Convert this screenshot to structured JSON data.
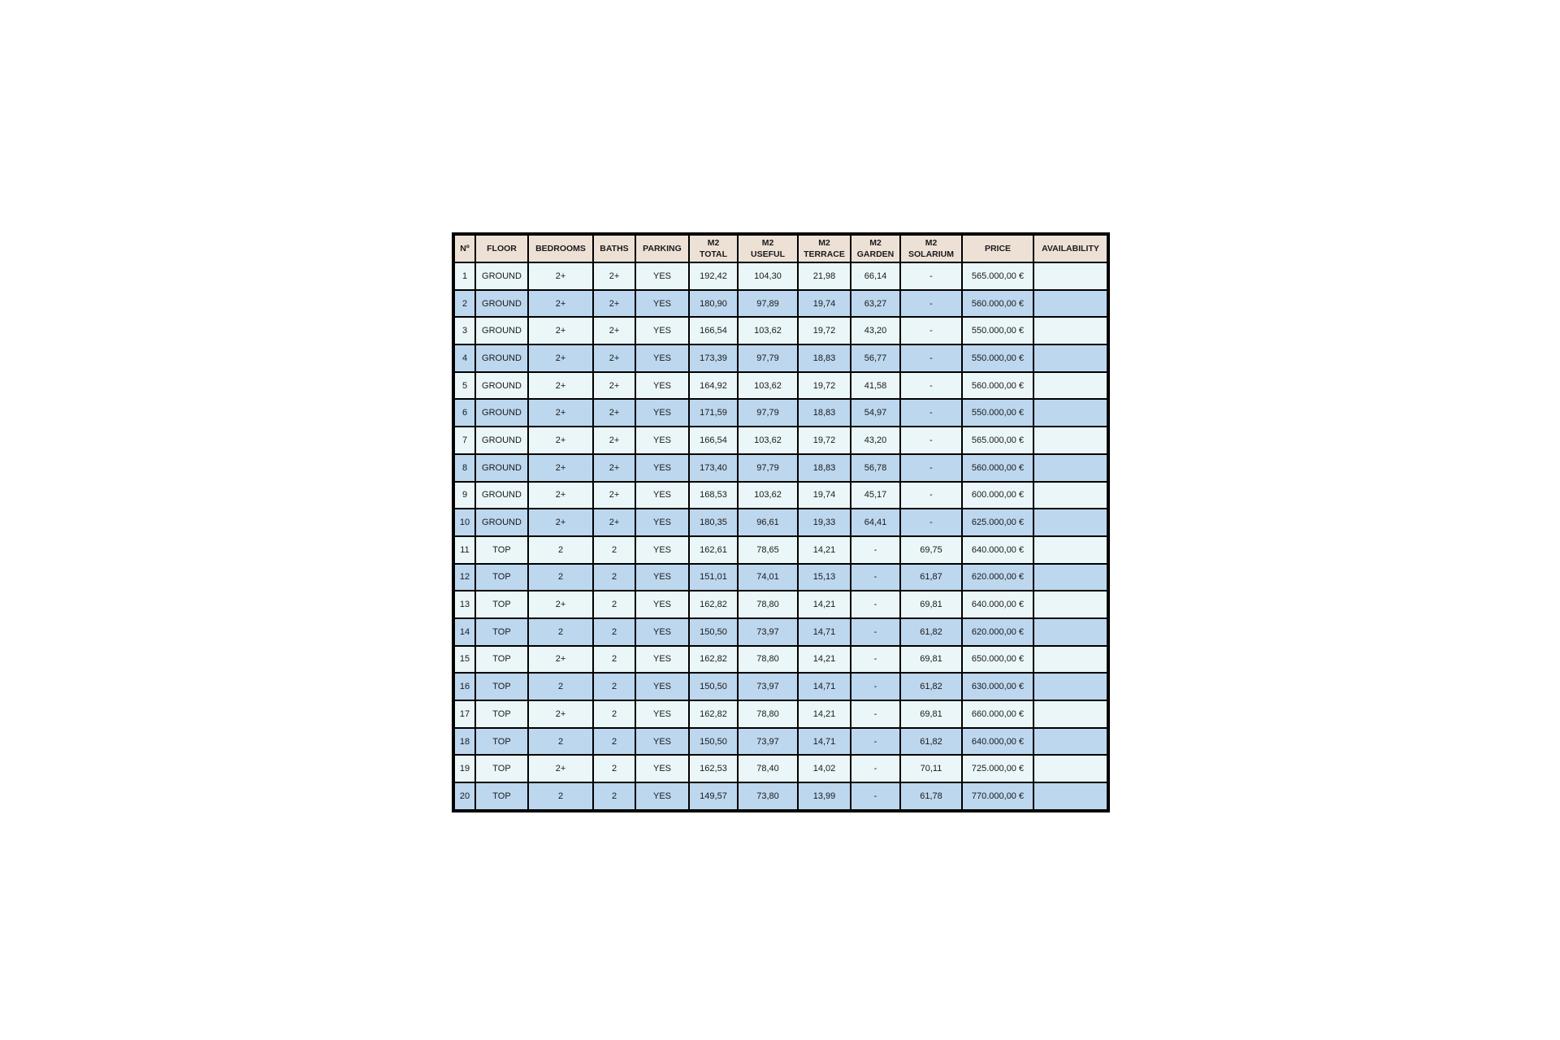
{
  "colors": {
    "header_bg": "#ede1d6",
    "row_light": "#ebf6f8",
    "row_blue": "#bdd7ee",
    "border": "#000000"
  },
  "table": {
    "headers": [
      [
        "Nº"
      ],
      [
        "FLOOR"
      ],
      [
        "BEDROOMS"
      ],
      [
        "BATHS"
      ],
      [
        "PARKING"
      ],
      [
        "M2",
        "TOTAL"
      ],
      [
        "M2",
        "USEFUL"
      ],
      [
        "M2",
        "TERRACE"
      ],
      [
        "M2",
        "GARDEN"
      ],
      [
        "M2",
        "SOLARIUM"
      ],
      [
        "PRICE"
      ],
      [
        "AVAILABILITY"
      ]
    ],
    "rows": [
      [
        "1",
        "GROUND",
        "2+",
        "2+",
        "YES",
        "192,42",
        "104,30",
        "21,98",
        "66,14",
        "-",
        "565.000,00 €",
        ""
      ],
      [
        "2",
        "GROUND",
        "2+",
        "2+",
        "YES",
        "180,90",
        "97,89",
        "19,74",
        "63,27",
        "-",
        "560.000,00 €",
        ""
      ],
      [
        "3",
        "GROUND",
        "2+",
        "2+",
        "YES",
        "166,54",
        "103,62",
        "19,72",
        "43,20",
        "-",
        "550.000,00 €",
        ""
      ],
      [
        "4",
        "GROUND",
        "2+",
        "2+",
        "YES",
        "173,39",
        "97,79",
        "18,83",
        "56,77",
        "-",
        "550.000,00 €",
        ""
      ],
      [
        "5",
        "GROUND",
        "2+",
        "2+",
        "YES",
        "164,92",
        "103,62",
        "19,72",
        "41,58",
        "-",
        "560.000,00 €",
        ""
      ],
      [
        "6",
        "GROUND",
        "2+",
        "2+",
        "YES",
        "171,59",
        "97,79",
        "18,83",
        "54,97",
        "-",
        "550.000,00 €",
        ""
      ],
      [
        "7",
        "GROUND",
        "2+",
        "2+",
        "YES",
        "166,54",
        "103,62",
        "19,72",
        "43,20",
        "-",
        "565.000,00 €",
        ""
      ],
      [
        "8",
        "GROUND",
        "2+",
        "2+",
        "YES",
        "173,40",
        "97,79",
        "18,83",
        "56,78",
        "-",
        "560.000,00 €",
        ""
      ],
      [
        "9",
        "GROUND",
        "2+",
        "2+",
        "YES",
        "168,53",
        "103,62",
        "19,74",
        "45,17",
        "-",
        "600.000,00 €",
        ""
      ],
      [
        "10",
        "GROUND",
        "2+",
        "2+",
        "YES",
        "180,35",
        "96,61",
        "19,33",
        "64,41",
        "-",
        "625.000,00 €",
        ""
      ],
      [
        "11",
        "TOP",
        "2",
        "2",
        "YES",
        "162,61",
        "78,65",
        "14,21",
        "-",
        "69,75",
        "640.000,00 €",
        ""
      ],
      [
        "12",
        "TOP",
        "2",
        "2",
        "YES",
        "151,01",
        "74,01",
        "15,13",
        "-",
        "61,87",
        "620.000,00 €",
        ""
      ],
      [
        "13",
        "TOP",
        "2+",
        "2",
        "YES",
        "162,82",
        "78,80",
        "14,21",
        "-",
        "69,81",
        "640.000,00 €",
        ""
      ],
      [
        "14",
        "TOP",
        "2",
        "2",
        "YES",
        "150,50",
        "73,97",
        "14,71",
        "-",
        "61,82",
        "620.000,00 €",
        ""
      ],
      [
        "15",
        "TOP",
        "2+",
        "2",
        "YES",
        "162,82",
        "78,80",
        "14,21",
        "-",
        "69,81",
        "650.000,00 €",
        ""
      ],
      [
        "16",
        "TOP",
        "2",
        "2",
        "YES",
        "150,50",
        "73,97",
        "14,71",
        "-",
        "61,82",
        "630.000,00 €",
        ""
      ],
      [
        "17",
        "TOP",
        "2+",
        "2",
        "YES",
        "162,82",
        "78,80",
        "14,21",
        "-",
        "69,81",
        "660.000,00 €",
        ""
      ],
      [
        "18",
        "TOP",
        "2",
        "2",
        "YES",
        "150,50",
        "73,97",
        "14,71",
        "-",
        "61,82",
        "640.000,00 €",
        ""
      ],
      [
        "19",
        "TOP",
        "2+",
        "2",
        "YES",
        "162,53",
        "78,40",
        "14,02",
        "-",
        "70,11",
        "725.000,00 €",
        ""
      ],
      [
        "20",
        "TOP",
        "2",
        "2",
        "YES",
        "149,57",
        "73,80",
        "13,99",
        "-",
        "61,78",
        "770.000,00 €",
        ""
      ]
    ]
  }
}
